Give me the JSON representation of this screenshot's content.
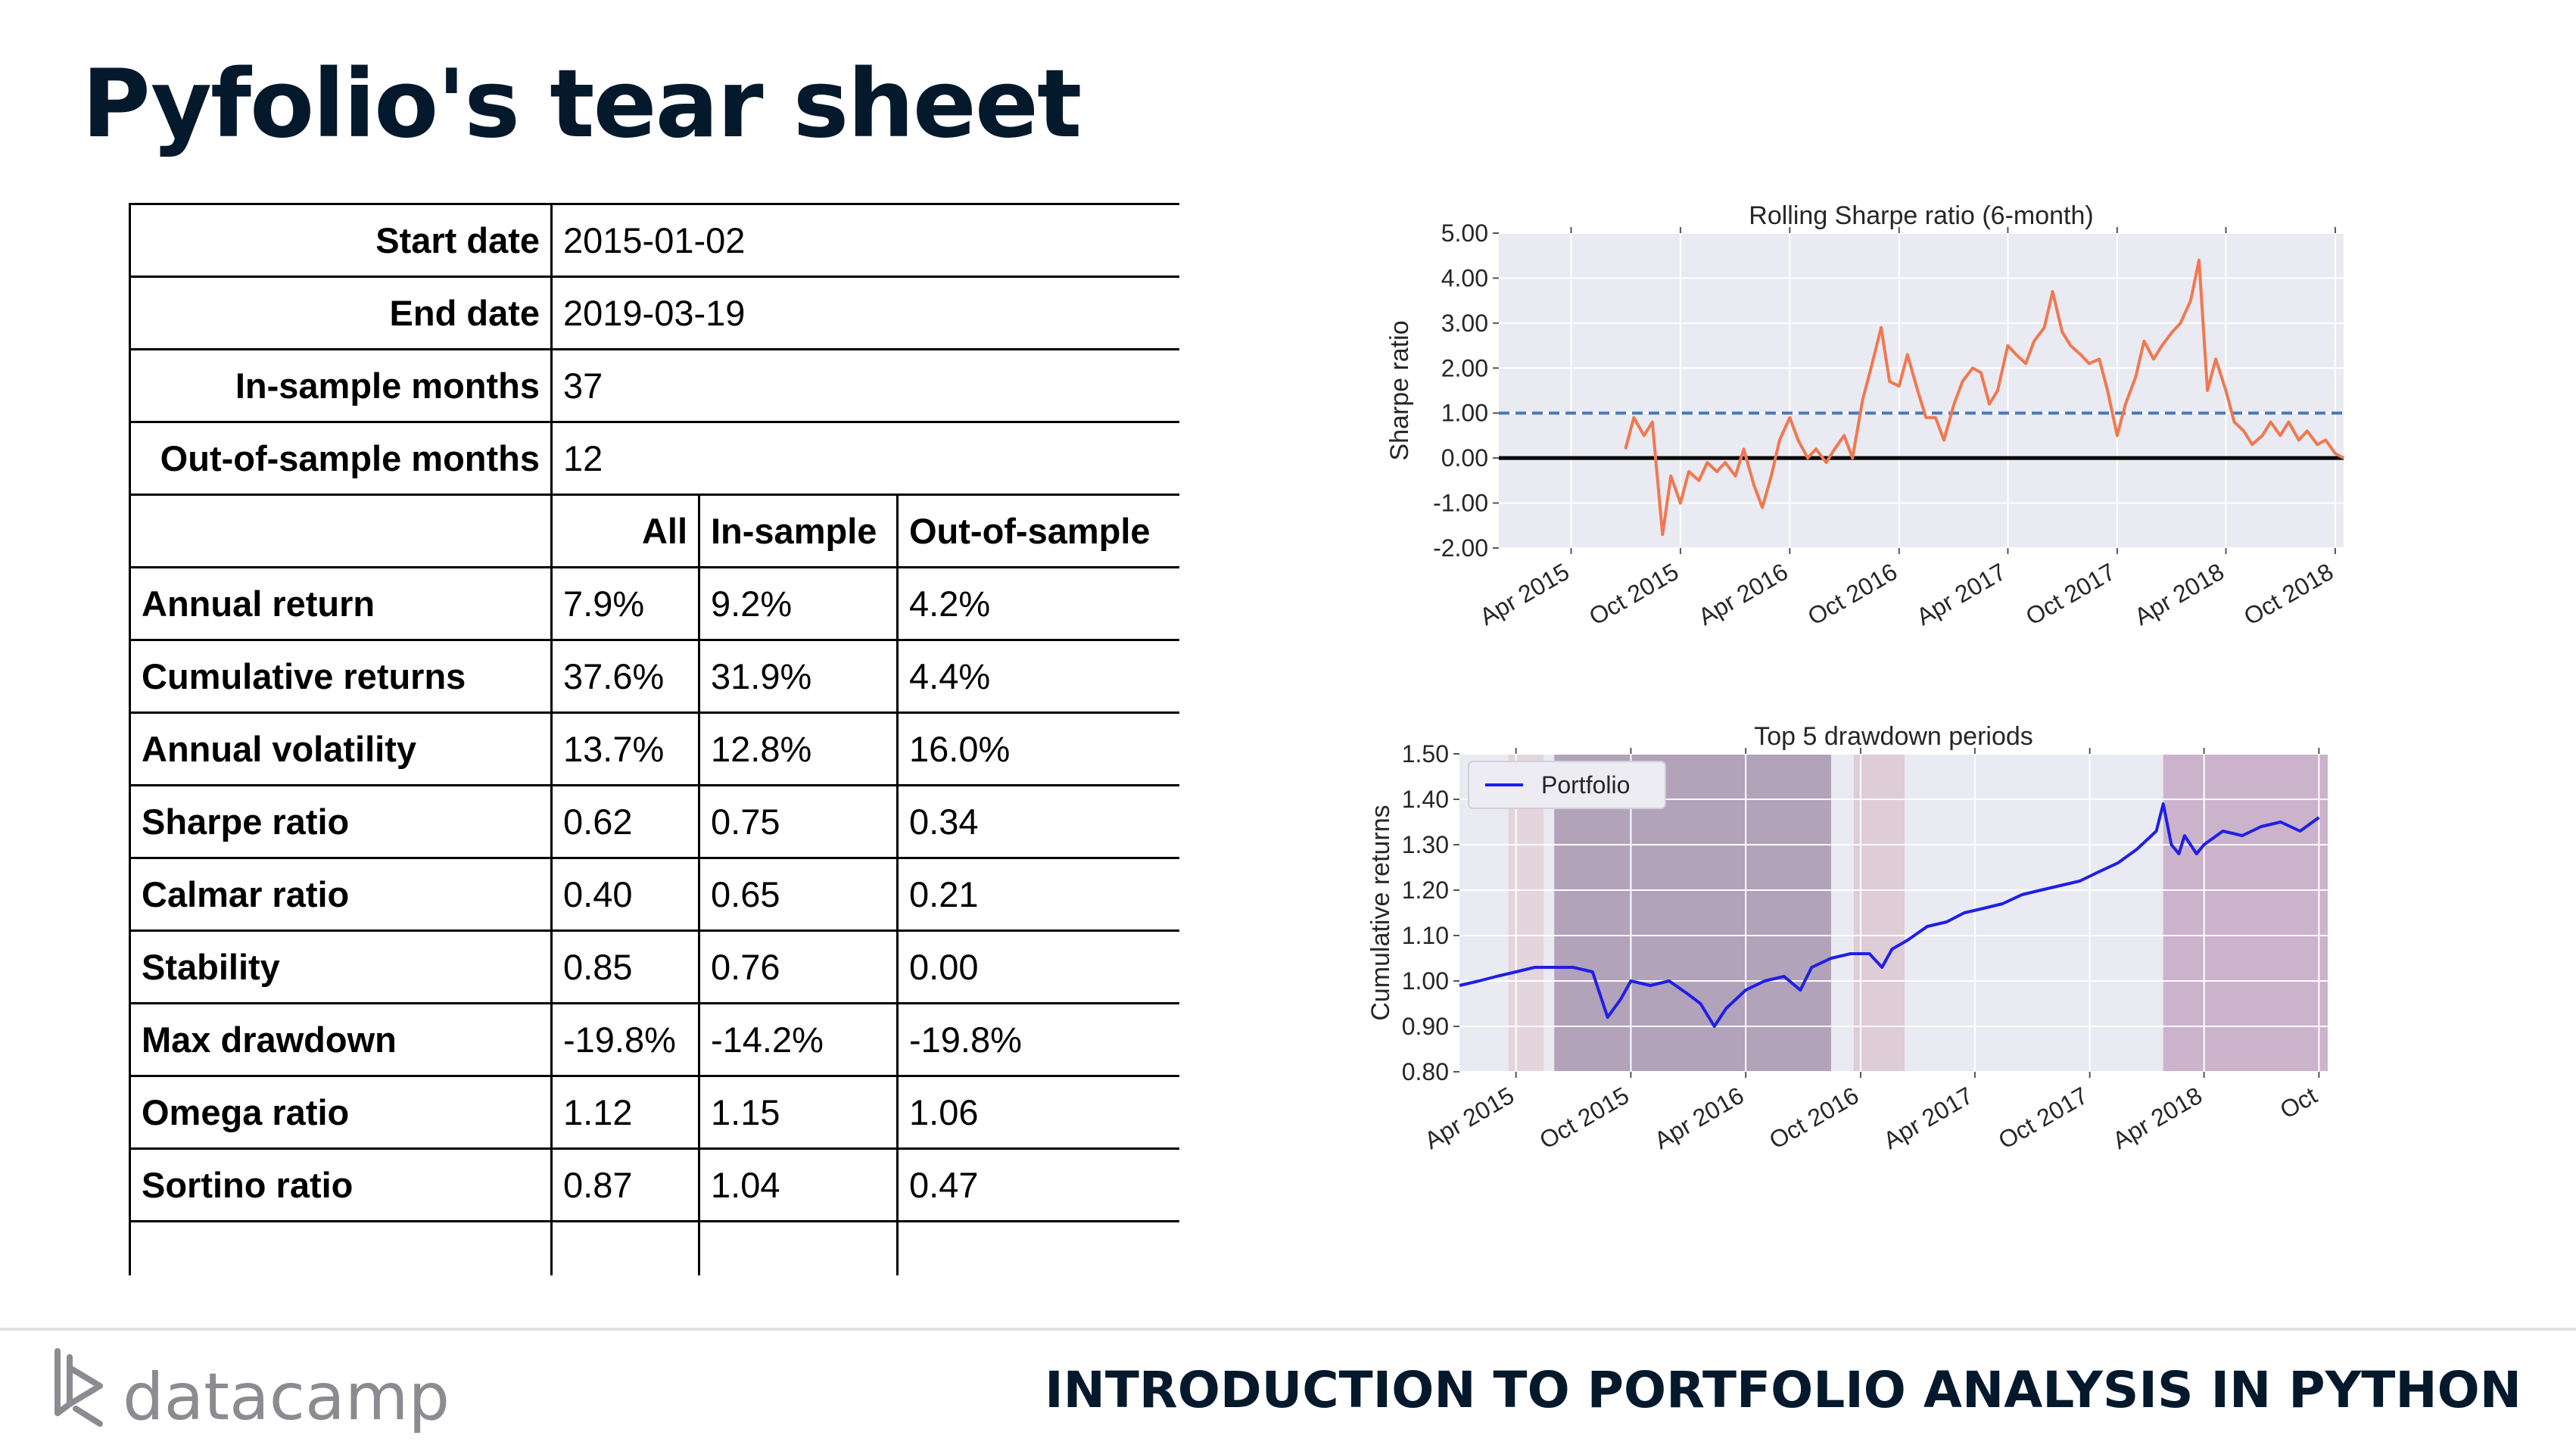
{
  "page": {
    "title": "Pyfolio's tear sheet"
  },
  "stats_table": {
    "info_rows": [
      {
        "label": "Start date",
        "value": "2015-01-02"
      },
      {
        "label": "End date",
        "value": "2019-03-19"
      },
      {
        "label": "In-sample months",
        "value": "37"
      },
      {
        "label": "Out-of-sample months",
        "value": "12"
      }
    ],
    "headers": [
      "All",
      "In-sample",
      "Out-of-sample"
    ],
    "metric_rows": [
      {
        "label": "Annual return",
        "values": [
          "7.9%",
          "9.2%",
          "4.2%"
        ]
      },
      {
        "label": "Cumulative returns",
        "values": [
          "37.6%",
          "31.9%",
          "4.4%"
        ]
      },
      {
        "label": "Annual volatility",
        "values": [
          "13.7%",
          "12.8%",
          "16.0%"
        ]
      },
      {
        "label": "Sharpe ratio",
        "values": [
          "0.62",
          "0.75",
          "0.34"
        ]
      },
      {
        "label": "Calmar ratio",
        "values": [
          "0.40",
          "0.65",
          "0.21"
        ]
      },
      {
        "label": "Stability",
        "values": [
          "0.85",
          "0.76",
          "0.00"
        ]
      },
      {
        "label": "Max drawdown",
        "values": [
          "-19.8%",
          "-14.2%",
          "-19.8%"
        ]
      },
      {
        "label": "Omega ratio",
        "values": [
          "1.12",
          "1.15",
          "1.06"
        ]
      },
      {
        "label": "Sortino ratio",
        "values": [
          "0.87",
          "1.04",
          "0.47"
        ]
      }
    ]
  },
  "chart_data": [
    {
      "type": "line",
      "title": "Rolling Sharpe ratio (6-month)",
      "ylabel": "Sharpe ratio",
      "xlabel": "",
      "x_tick_labels": [
        "Apr 2015",
        "Oct 2015",
        "Apr 2016",
        "Oct 2016",
        "Apr 2017",
        "Oct 2017",
        "Apr 2018",
        "Oct 2018"
      ],
      "xlim": [
        "2014-12-01",
        "2018-10-15"
      ],
      "ylim": [
        -2.0,
        5.0
      ],
      "y_ticks": [
        "5.00",
        "4.00",
        "3.00",
        "2.00",
        "1.00",
        "0.00",
        "-1.00",
        "-2.00"
      ],
      "grid": true,
      "reference_lines": [
        {
          "y": 1.0,
          "style": "dashed",
          "color": "#4a7ab5"
        },
        {
          "y": 0.0,
          "style": "solid",
          "color": "#000000"
        }
      ],
      "series": [
        {
          "color": "#f07850",
          "x": [
            "2015-07-01",
            "2015-07-15",
            "2015-08-01",
            "2015-08-15",
            "2015-09-01",
            "2015-09-15",
            "2015-10-01",
            "2015-10-15",
            "2015-11-01",
            "2015-11-15",
            "2015-12-01",
            "2015-12-15",
            "2016-01-01",
            "2016-01-15",
            "2016-02-01",
            "2016-02-15",
            "2016-03-01",
            "2016-03-15",
            "2016-04-01",
            "2016-04-15",
            "2016-05-01",
            "2016-05-15",
            "2016-06-01",
            "2016-06-15",
            "2016-07-01",
            "2016-07-15",
            "2016-08-01",
            "2016-08-15",
            "2016-09-01",
            "2016-09-15",
            "2016-10-01",
            "2016-10-15",
            "2016-11-01",
            "2016-11-15",
            "2016-12-01",
            "2016-12-15",
            "2017-01-01",
            "2017-01-15",
            "2017-02-01",
            "2017-02-15",
            "2017-03-01",
            "2017-03-15",
            "2017-04-01",
            "2017-04-15",
            "2017-05-01",
            "2017-05-15",
            "2017-06-01",
            "2017-06-15",
            "2017-07-01",
            "2017-07-15",
            "2017-08-01",
            "2017-08-15",
            "2017-09-01",
            "2017-09-15",
            "2017-10-01",
            "2017-10-15",
            "2017-11-01",
            "2017-11-15",
            "2017-12-01",
            "2017-12-15",
            "2018-01-01",
            "2018-01-15",
            "2018-02-01",
            "2018-02-15",
            "2018-03-01",
            "2018-03-15",
            "2018-04-01",
            "2018-04-15",
            "2018-05-01",
            "2018-05-15",
            "2018-06-01",
            "2018-06-15",
            "2018-07-01",
            "2018-07-15",
            "2018-08-01",
            "2018-08-15",
            "2018-09-01",
            "2018-09-15",
            "2018-10-01",
            "2018-10-15"
          ],
          "values": [
            0.2,
            0.9,
            0.5,
            0.8,
            -1.7,
            -0.4,
            -1.0,
            -0.3,
            -0.5,
            -0.1,
            -0.3,
            -0.1,
            -0.4,
            0.2,
            -0.6,
            -1.1,
            -0.4,
            0.4,
            0.9,
            0.4,
            0.0,
            0.2,
            -0.1,
            0.2,
            0.5,
            0.0,
            1.3,
            2.0,
            2.9,
            1.7,
            1.6,
            2.3,
            1.5,
            0.9,
            0.9,
            0.4,
            1.2,
            1.7,
            2.0,
            1.9,
            1.2,
            1.5,
            2.5,
            2.3,
            2.1,
            2.6,
            2.9,
            3.7,
            2.8,
            2.5,
            2.3,
            2.1,
            2.2,
            1.5,
            0.5,
            1.2,
            1.8,
            2.6,
            2.2,
            2.5,
            2.8,
            3.0,
            3.5,
            4.4,
            1.5,
            2.2,
            1.5,
            0.8,
            0.6,
            0.3,
            0.5,
            0.8,
            0.5,
            0.8,
            0.4,
            0.6,
            0.3,
            0.4,
            0.1,
            0.0
          ]
        }
      ]
    },
    {
      "type": "line",
      "title": "Top 5 drawdown periods",
      "ylabel": "Cumulative returns",
      "xlabel": "",
      "x_tick_labels": [
        "Apr 2015",
        "Oct 2015",
        "Apr 2016",
        "Oct 2016",
        "Apr 2017",
        "Oct 2017",
        "Apr 2018",
        "Oct"
      ],
      "xlim": [
        "2015-01-01",
        "2018-10-15"
      ],
      "ylim": [
        0.8,
        1.5
      ],
      "y_ticks": [
        "1.50",
        "1.40",
        "1.30",
        "1.20",
        "1.10",
        "1.00",
        "0.90",
        "0.80"
      ],
      "grid": true,
      "legend": {
        "position": "top-left",
        "entries": [
          "Portfolio"
        ]
      },
      "shaded_periods": [
        {
          "start": "2015-03-20",
          "end": "2015-05-15",
          "color": "#dcc2c8",
          "opacity": 0.55
        },
        {
          "start": "2015-06-01",
          "end": "2016-08-15",
          "color": "#7a5a82",
          "opacity": 0.5
        },
        {
          "start": "2016-09-20",
          "end": "2016-12-10",
          "color": "#c895a6",
          "opacity": 0.35
        },
        {
          "start": "2018-01-26",
          "end": "2018-10-15",
          "color": "#9a5a8e",
          "opacity": 0.38
        }
      ],
      "series": [
        {
          "name": "Portfolio",
          "color": "#1f1fe6",
          "x": [
            "2015-01-01",
            "2015-02-01",
            "2015-03-01",
            "2015-04-01",
            "2015-05-01",
            "2015-06-01",
            "2015-07-01",
            "2015-08-01",
            "2015-08-25",
            "2015-09-15",
            "2015-10-01",
            "2015-11-01",
            "2015-12-01",
            "2016-01-01",
            "2016-01-20",
            "2016-02-11",
            "2016-03-01",
            "2016-04-01",
            "2016-05-01",
            "2016-06-01",
            "2016-06-27",
            "2016-07-15",
            "2016-08-15",
            "2016-09-15",
            "2016-10-15",
            "2016-11-04",
            "2016-11-20",
            "2016-12-15",
            "2017-01-15",
            "2017-02-15",
            "2017-03-15",
            "2017-04-15",
            "2017-05-15",
            "2017-06-15",
            "2017-07-15",
            "2017-08-15",
            "2017-09-15",
            "2017-10-15",
            "2017-11-15",
            "2017-12-15",
            "2018-01-15",
            "2018-01-26",
            "2018-02-08",
            "2018-02-20",
            "2018-03-01",
            "2018-03-20",
            "2018-04-01",
            "2018-05-01",
            "2018-06-01",
            "2018-07-01",
            "2018-08-01",
            "2018-09-01",
            "2018-10-01"
          ],
          "values": [
            0.99,
            1.0,
            1.01,
            1.02,
            1.03,
            1.03,
            1.03,
            1.02,
            0.92,
            0.96,
            1.0,
            0.99,
            1.0,
            0.97,
            0.95,
            0.9,
            0.94,
            0.98,
            1.0,
            1.01,
            0.98,
            1.03,
            1.05,
            1.06,
            1.06,
            1.03,
            1.07,
            1.09,
            1.12,
            1.13,
            1.15,
            1.16,
            1.17,
            1.19,
            1.2,
            1.21,
            1.22,
            1.24,
            1.26,
            1.29,
            1.33,
            1.39,
            1.3,
            1.28,
            1.32,
            1.28,
            1.3,
            1.33,
            1.32,
            1.34,
            1.35,
            1.33,
            1.36
          ]
        }
      ]
    }
  ],
  "footer": {
    "logo_text": "datacamp",
    "course_title": "INTRODUCTION TO PORTFOLIO ANALYSIS IN PYTHON"
  },
  "colors": {
    "title": "#05192d",
    "plot_bg": "#eaeaf2",
    "sharpe_line": "#f07850",
    "portfolio_line": "#1f1fe6"
  }
}
